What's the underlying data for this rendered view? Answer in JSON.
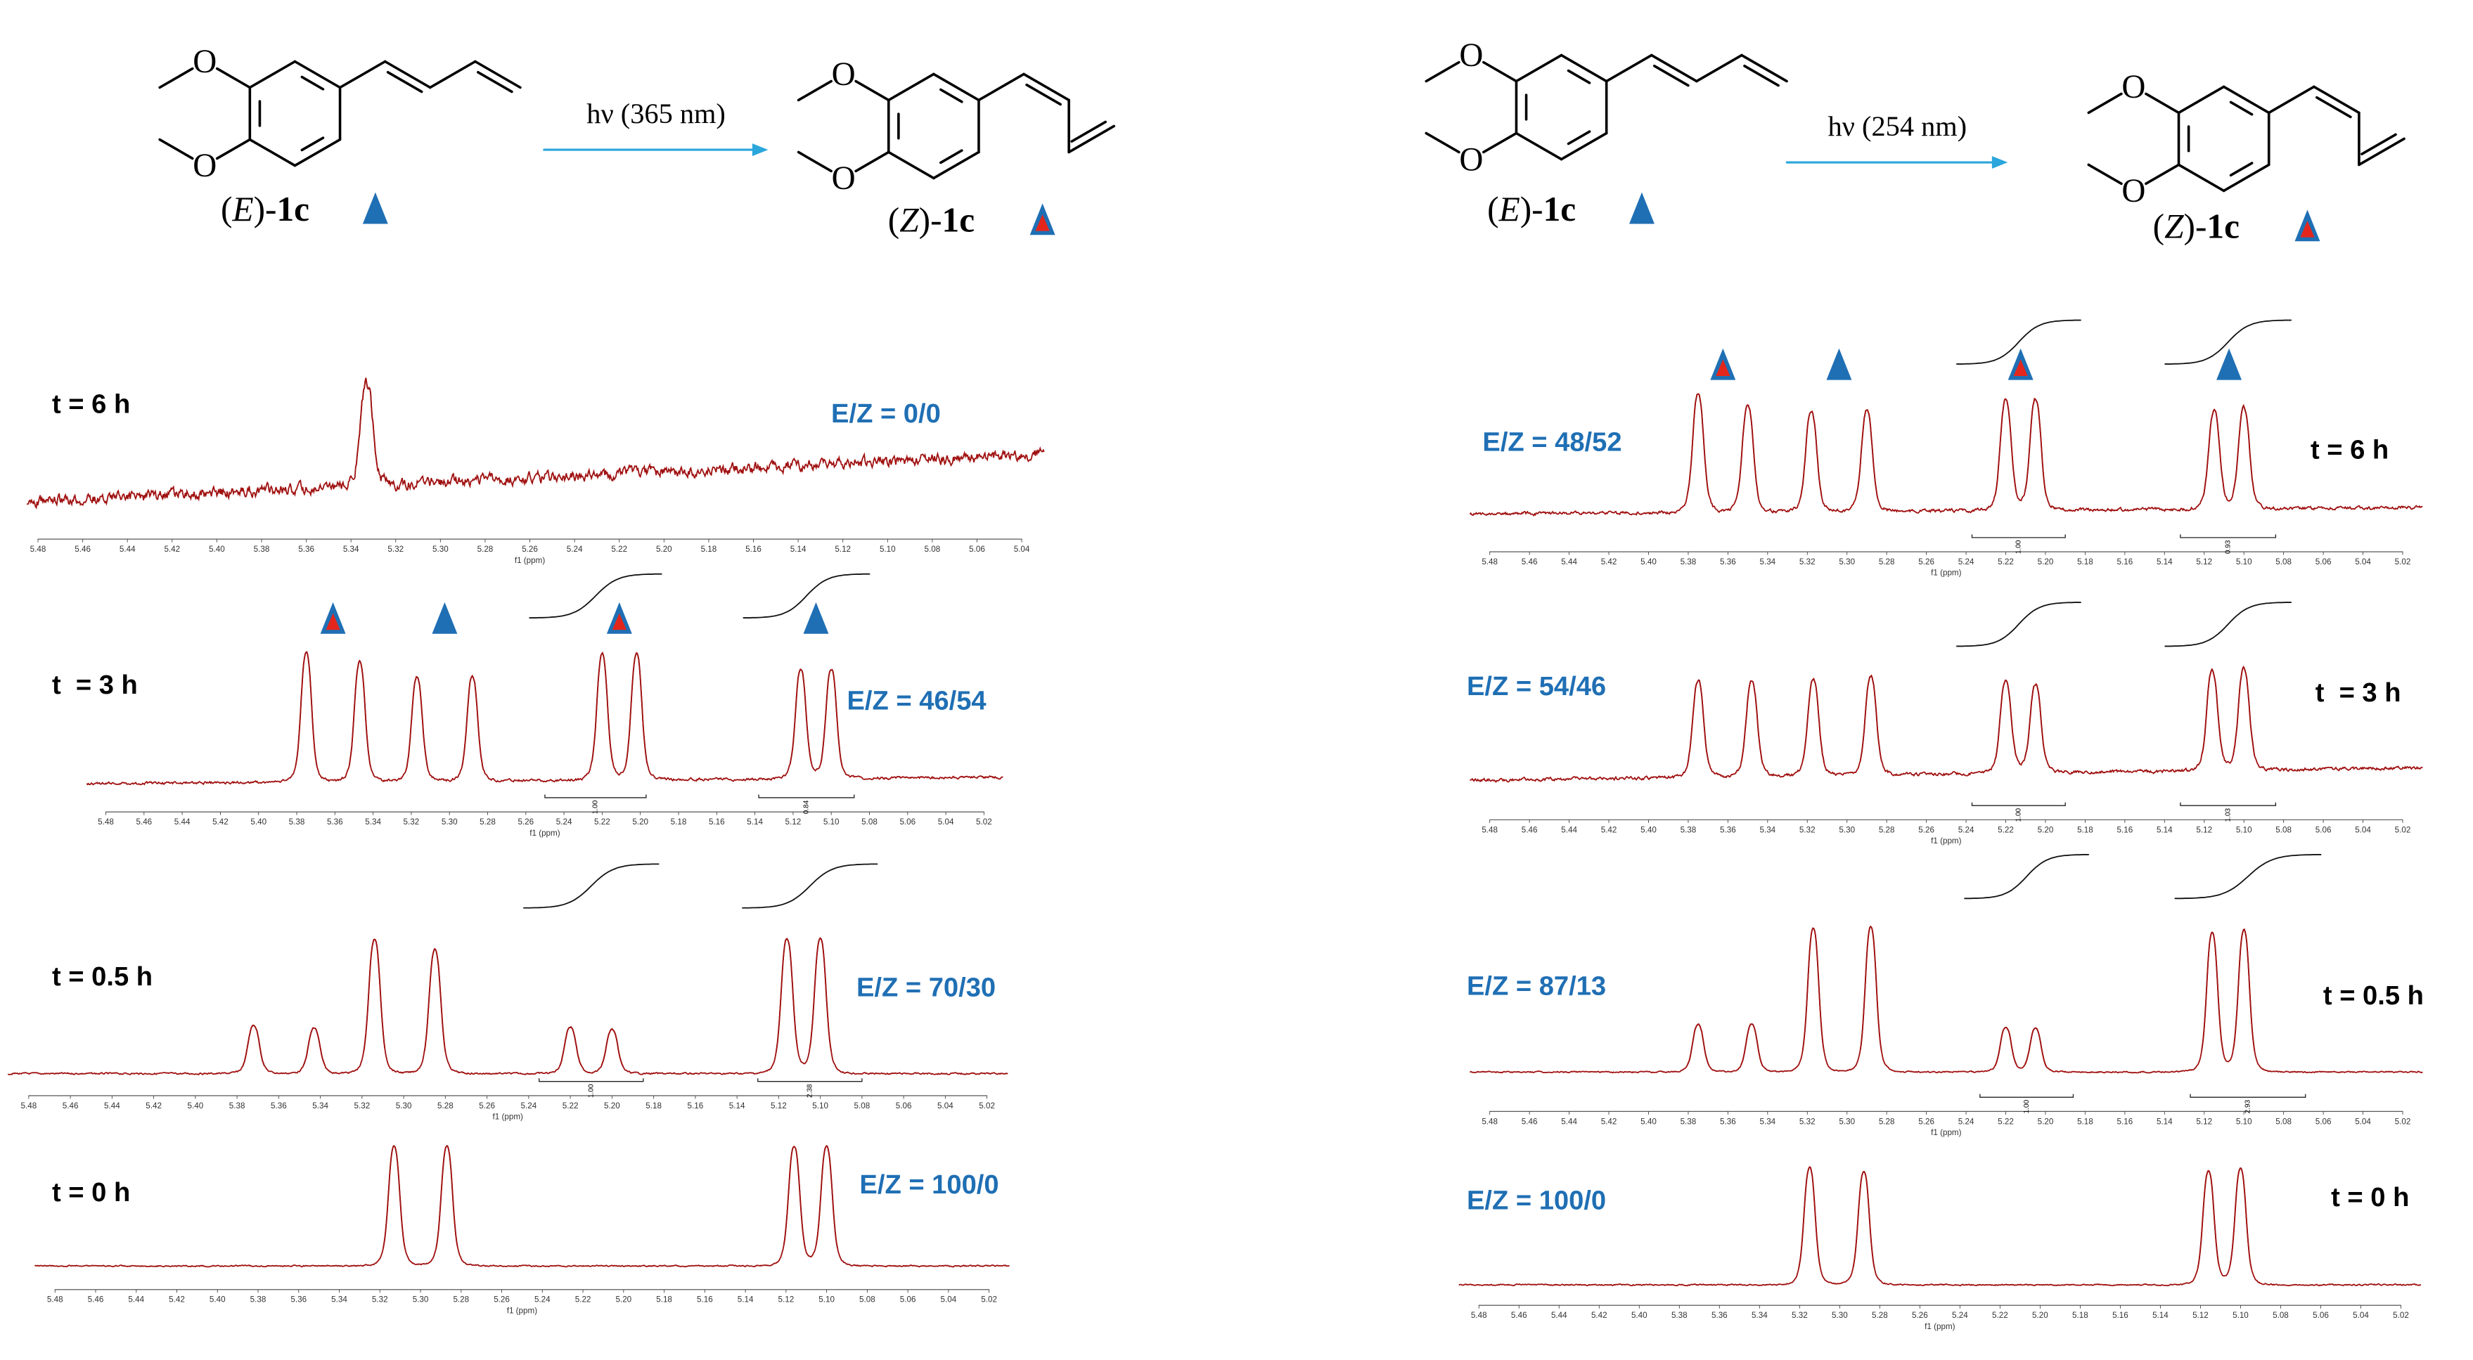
{
  "schemes": [
    {
      "arrow_label": "hν (365 nm)",
      "reactant": {
        "atom": "O",
        "name": [
          "(",
          "E",
          ")-",
          "1c"
        ]
      },
      "product": {
        "atom": "O",
        "name": [
          "(",
          "Z",
          ")-",
          "1c"
        ]
      }
    },
    {
      "arrow_label": "hν (254 nm)",
      "reactant": {
        "atom": "O",
        "name": [
          "(",
          "E",
          ")-",
          "1c"
        ]
      },
      "product": {
        "atom": "O",
        "name": [
          "(",
          "Z",
          ")-",
          "1c"
        ]
      }
    }
  ],
  "chart_data": [
    {
      "type": "nmr",
      "title": "t = 6 h",
      "annotation": "E/Z = 0/0",
      "xlabel": "f1 (ppm)",
      "color": "#a01010",
      "xlim": [
        5.485,
        5.03
      ],
      "xticks": [
        5.48,
        5.46,
        5.44,
        5.42,
        {
          "value": 5.4,
          "label": "5.40"
        },
        5.38,
        5.36,
        5.34,
        5.32,
        {
          "value": 5.3,
          "label": "5.30"
        },
        5.28,
        5.26,
        5.24,
        5.22,
        {
          "value": 5.2,
          "label": "5.20"
        },
        5.18,
        5.16,
        5.14,
        5.12,
        {
          "value": 5.1,
          "label": "5.10"
        },
        5.08,
        5.06,
        5.04
      ],
      "x": [
        5.333
      ],
      "values": [
        0.81
      ],
      "integrals": []
    },
    {
      "type": "nmr",
      "title": "t  = 3 h",
      "annotation": "E/Z = 46/54",
      "xlabel": "f1 (ppm)",
      "color": "#a01010",
      "xlim": [
        5.49,
        5.01
      ],
      "xticks": [
        5.48,
        5.46,
        5.44,
        5.42,
        {
          "value": 5.4,
          "label": "5.40"
        },
        5.38,
        5.36,
        5.34,
        5.32,
        {
          "value": 5.3,
          "label": "5.30"
        },
        5.28,
        5.26,
        5.24,
        5.22,
        {
          "value": 5.2,
          "label": "5.20"
        },
        5.18,
        5.16,
        5.14,
        5.12,
        {
          "value": 5.1,
          "label": "5.10"
        },
        5.08,
        5.06,
        5.04,
        5.02
      ],
      "x": [
        5.375,
        5.347,
        5.317,
        5.288,
        5.22,
        5.202,
        5.116,
        5.1
      ],
      "values": [
        0.91,
        0.85,
        0.74,
        0.74,
        0.89,
        0.89,
        0.77,
        0.77
      ],
      "integrals": [
        {
          "from": 5.25,
          "to": 5.197,
          "value": 1,
          "label": "1.00"
        },
        {
          "from": 5.138,
          "to": 5.088,
          "value": 0.84,
          "label": "0.84"
        }
      ]
    },
    {
      "type": "nmr",
      "title": "t = 0.5 h",
      "annotation": "E/Z = 70/30",
      "xlabel": "f1 (ppm)",
      "color": "#a01010",
      "xlim": [
        5.49,
        5.01
      ],
      "xticks": [
        5.48,
        5.46,
        5.44,
        5.42,
        {
          "value": 5.4,
          "label": "5.40"
        },
        5.38,
        5.36,
        5.34,
        5.32,
        {
          "value": 5.3,
          "label": "5.30"
        },
        5.28,
        5.26,
        5.24,
        5.22,
        {
          "value": 5.2,
          "label": "5.20"
        },
        5.18,
        5.16,
        5.14,
        5.12,
        {
          "value": 5.1,
          "label": "5.10"
        },
        5.08,
        5.06,
        5.04,
        5.02
      ],
      "x": [
        5.372,
        5.343,
        5.314,
        5.285,
        5.22,
        5.2,
        5.116,
        5.1
      ],
      "values": [
        0.34,
        0.32,
        0.95,
        0.88,
        0.33,
        0.31,
        0.95,
        0.95
      ],
      "integrals": [
        {
          "from": 5.235,
          "to": 5.185,
          "value": 1,
          "label": "1.00"
        },
        {
          "from": 5.13,
          "to": 5.08,
          "value": 2.38,
          "label": "2.38"
        }
      ]
    },
    {
      "type": "nmr",
      "title": "t = 0 h",
      "annotation": "E/Z = 100/0",
      "xlabel": "f1 (ppm)",
      "color": "#a01010",
      "xlim": [
        5.49,
        5.01
      ],
      "xticks": [
        5.48,
        5.46,
        5.44,
        5.42,
        {
          "value": 5.4,
          "label": "5.40"
        },
        5.38,
        5.36,
        5.34,
        5.32,
        {
          "value": 5.3,
          "label": "5.30"
        },
        5.28,
        5.26,
        5.24,
        5.22,
        {
          "value": 5.2,
          "label": "5.20"
        },
        5.18,
        5.16,
        5.14,
        5.12,
        {
          "value": 5.1,
          "label": "5.10"
        },
        5.08,
        5.06,
        5.04,
        5.02
      ],
      "x": [
        5.313,
        5.287,
        5.116,
        5.1
      ],
      "values": [
        0.95,
        0.95,
        0.95,
        0.95
      ],
      "integrals": []
    },
    {
      "type": "nmr",
      "title": "t = 6 h",
      "annotation": "E/Z = 48/52",
      "xlabel": "f1 (ppm)",
      "color": "#a01010",
      "xlim": [
        5.49,
        5.01
      ],
      "xticks": [
        5.48,
        5.46,
        5.44,
        5.42,
        {
          "value": 5.4,
          "label": "5.40"
        },
        5.38,
        5.36,
        5.34,
        5.32,
        {
          "value": 5.3,
          "label": "5.30"
        },
        5.28,
        5.26,
        5.24,
        5.22,
        {
          "value": 5.2,
          "label": "5.20"
        },
        5.18,
        5.16,
        5.14,
        5.12,
        {
          "value": 5.1,
          "label": "5.10"
        },
        5.08,
        5.06,
        5.04,
        5.02
      ],
      "x": [
        5.375,
        5.35,
        5.318,
        5.29,
        5.22,
        5.205,
        5.115,
        5.1
      ],
      "values": [
        0.94,
        0.85,
        0.8,
        0.8,
        0.88,
        0.88,
        0.78,
        0.8
      ],
      "integrals": [
        {
          "from": 5.237,
          "to": 5.19,
          "value": 1,
          "label": "1.00"
        },
        {
          "from": 5.132,
          "to": 5.084,
          "value": 0.93,
          "label": "0.93"
        }
      ]
    },
    {
      "type": "nmr",
      "title": "t  = 3 h",
      "annotation": "E/Z = 54/46",
      "xlabel": "f1 (ppm)",
      "color": "#a01010",
      "xlim": [
        5.49,
        5.01
      ],
      "xticks": [
        5.48,
        5.46,
        5.44,
        5.42,
        {
          "value": 5.4,
          "label": "5.40"
        },
        5.38,
        5.36,
        5.34,
        5.32,
        {
          "value": 5.3,
          "label": "5.30"
        },
        5.28,
        5.26,
        5.24,
        5.22,
        {
          "value": 5.2,
          "label": "5.20"
        },
        5.18,
        5.16,
        5.14,
        5.12,
        {
          "value": 5.1,
          "label": "5.10"
        },
        5.08,
        5.06,
        5.04,
        5.02
      ],
      "x": [
        5.375,
        5.348,
        5.317,
        5.288,
        5.22,
        5.205,
        5.116,
        5.1
      ],
      "values": [
        0.88,
        0.87,
        0.87,
        0.9,
        0.85,
        0.8,
        0.9,
        0.92
      ],
      "integrals": [
        {
          "from": 5.237,
          "to": 5.19,
          "value": 1,
          "label": "1.00"
        },
        {
          "from": 5.132,
          "to": 5.084,
          "value": 1.03,
          "label": "1.03"
        }
      ]
    },
    {
      "type": "nmr",
      "title": "t = 0.5 h",
      "annotation": "E/Z = 87/13",
      "xlabel": "f1 (ppm)",
      "color": "#a01010",
      "xlim": [
        5.49,
        5.01
      ],
      "xticks": [
        5.48,
        5.46,
        5.44,
        5.42,
        {
          "value": 5.4,
          "label": "5.40"
        },
        5.38,
        5.36,
        5.34,
        5.32,
        {
          "value": 5.3,
          "label": "5.30"
        },
        5.28,
        5.26,
        5.24,
        5.22,
        {
          "value": 5.2,
          "label": "5.20"
        },
        5.18,
        5.16,
        5.14,
        5.12,
        {
          "value": 5.1,
          "label": "5.10"
        },
        5.08,
        5.06,
        5.04,
        5.02
      ],
      "x": [
        5.375,
        5.348,
        5.317,
        5.288,
        5.22,
        5.205,
        5.116,
        5.1
      ],
      "values": [
        0.32,
        0.32,
        0.96,
        0.97,
        0.3,
        0.29,
        0.93,
        0.95
      ],
      "integrals": [
        {
          "from": 5.233,
          "to": 5.186,
          "value": 1,
          "label": "1.00"
        },
        {
          "from": 5.127,
          "to": 5.069,
          "value": 2.93,
          "label": "2.93"
        }
      ]
    },
    {
      "type": "nmr",
      "title": "t = 0 h",
      "annotation": "E/Z = 100/0",
      "xlabel": "f1 (ppm)",
      "color": "#a01010",
      "xlim": [
        5.49,
        5.01
      ],
      "xticks": [
        5.48,
        5.46,
        5.44,
        5.42,
        {
          "value": 5.4,
          "label": "5.40"
        },
        5.38,
        5.36,
        5.34,
        5.32,
        {
          "value": 5.3,
          "label": "5.30"
        },
        5.28,
        5.26,
        5.24,
        5.22,
        {
          "value": 5.2,
          "label": "5.20"
        },
        5.18,
        5.16,
        5.14,
        5.12,
        {
          "value": 5.1,
          "label": "5.10"
        },
        5.08,
        5.06,
        5.04,
        5.02
      ],
      "x": [
        5.315,
        5.288,
        5.116,
        5.1
      ],
      "values": [
        0.93,
        0.9,
        0.9,
        0.92
      ],
      "integrals": []
    }
  ]
}
